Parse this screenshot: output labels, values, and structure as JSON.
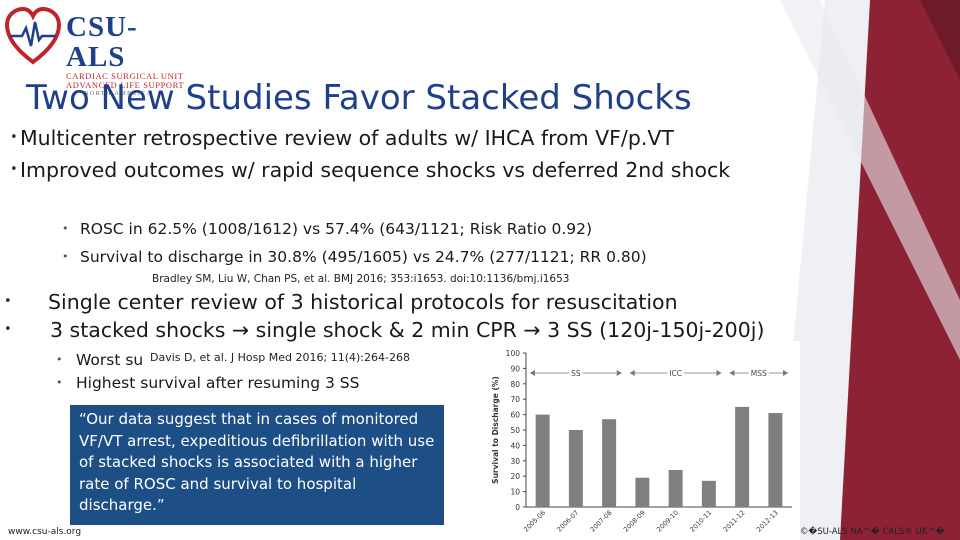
{
  "logo": {
    "main": "CSU-ALS",
    "sub1": "CARDIAC SURGICAL UNIT",
    "sub2": "ADVANCED LIFE SUPPORT",
    "sub3": "NORTH AMERICA"
  },
  "title": "Two New Studies Favor Stacked Shocks",
  "bullets_level1_a": [
    "Multicenter retrospective review of adults w/ IHCA from VF/p.VT",
    "Improved outcomes w/ rapid sequence shocks vs deferred 2nd shock"
  ],
  "bullets_level2_a": [
    "ROSC in 62.5% (1008/1612) vs 57.4% (643/1121; Risk Ratio 0.92)",
    "Survival to discharge in 30.8% (495/1605) vs 24.7% (277/1121; RR 0.80)"
  ],
  "citation_1": "Bradley SM, Liu W, Chan PS, et al. BMJ 2016; 353:i1653. doi:10:1136/bmj.i1653",
  "bullets_level1_b": [
    "Single center review of 3 historical protocols for resuscitation",
    "3 stacked shocks → single shock & 2 min CPR → 3 SS (120j-150j-200j)"
  ],
  "bullets_level2_b": [
    "Worst su",
    "Highest survival after resuming 3 SS"
  ],
  "citation_2": "Davis D, et al. J Hosp Med 2016; 11(4):264-268",
  "quote": "“Our data suggest that in cases of monitored VF/VT arrest, expeditious defibrillation with use of stacked shocks is associated with a higher rate of ROSC and survival to hospital discharge.”",
  "footer_url": "www.csu-als.org",
  "footer_copy": "©�SU-ALS NA™� CALS® UK™�",
  "colors": {
    "title": "#1f3f8a",
    "quote_bg": "#1d4f86",
    "deco_red": "#8c2233",
    "bars": "#7f7f7f"
  },
  "chart_data": {
    "type": "bar",
    "categories": [
      "2005-06",
      "2006-07",
      "2007-08",
      "2008-09",
      "2009-10",
      "2010-11",
      "2011-12",
      "2012-13"
    ],
    "values": [
      60,
      50,
      57,
      19,
      24,
      17,
      65,
      61
    ],
    "ylabel": "Survival to Discharge (%)",
    "ylim": [
      0,
      100
    ],
    "yticks": [
      "0",
      "10",
      "20",
      "30",
      "40",
      "50",
      "60",
      "70",
      "80",
      "90",
      "100"
    ],
    "phases": [
      {
        "label": "SS",
        "start": 0,
        "end": 2
      },
      {
        "label": "ICC",
        "start": 3,
        "end": 5
      },
      {
        "label": "MSS",
        "start": 6,
        "end": 7
      }
    ]
  }
}
